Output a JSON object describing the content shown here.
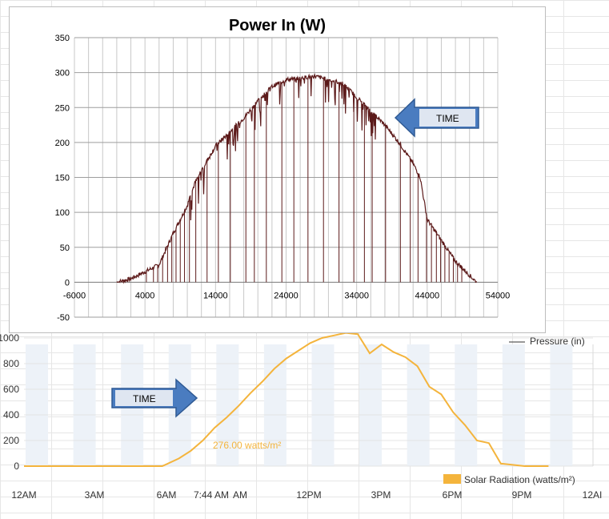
{
  "chart_data": [
    {
      "type": "line",
      "title": "Power In (W)",
      "xlim": [
        -6000,
        54000
      ],
      "ylim": [
        -50,
        350
      ],
      "x_ticks": [
        "-6000",
        "4000",
        "14000",
        "24000",
        "34000",
        "44000",
        "54000"
      ],
      "y_ticks": [
        "350",
        "300",
        "250",
        "200",
        "150",
        "100",
        "50",
        "0",
        "-50"
      ],
      "series": [
        {
          "color": "#5c1a1a",
          "x": [
            0,
            2000,
            4000,
            6000,
            8000,
            10000,
            11000,
            12000,
            14000,
            16000,
            18000,
            20000,
            22000,
            24000,
            26000,
            28000,
            30000,
            32000,
            34000,
            36000,
            38000,
            40000,
            42000,
            43000,
            44000,
            46000,
            48000,
            50000,
            51000
          ],
          "y": [
            0,
            5,
            15,
            25,
            70,
            110,
            140,
            160,
            195,
            215,
            235,
            260,
            280,
            290,
            292,
            295,
            290,
            285,
            265,
            245,
            225,
            200,
            170,
            150,
            90,
            60,
            30,
            10,
            0
          ]
        }
      ],
      "annotation": "TIME"
    },
    {
      "type": "line",
      "ylim": [
        0,
        1000
      ],
      "y_ticks": [
        "1000",
        "800",
        "600",
        "400",
        "200",
        "0"
      ],
      "x_ticks": [
        "12AM",
        "3AM",
        "6AM",
        "7:44 AM",
        "AM",
        "12PM",
        "3PM",
        "6PM",
        "9PM",
        "12AI"
      ],
      "series": [
        {
          "name": "Solar Radiation (watts/m²)",
          "color": "#f4b43c",
          "x": [
            0,
            5.8,
            6.5,
            7,
            7.5,
            8,
            8.5,
            9,
            9.5,
            10,
            10.5,
            11,
            11.5,
            12,
            12.5,
            13,
            13.5,
            14,
            14.5,
            15,
            15.5,
            16,
            16.5,
            17,
            17.5,
            18,
            18.5,
            19,
            19.5,
            20,
            20.5,
            21,
            21.5,
            22
          ],
          "y": [
            0,
            0,
            60,
            120,
            200,
            300,
            380,
            470,
            570,
            660,
            760,
            840,
            900,
            960,
            1000,
            1020,
            1040,
            1030,
            880,
            950,
            890,
            850,
            780,
            620,
            560,
            420,
            320,
            200,
            180,
            20,
            10,
            0,
            0,
            0
          ]
        }
      ],
      "annotation": "276.00 watts/m²",
      "arrow_label": "TIME",
      "legend_partial": "Pressure (in)"
    }
  ],
  "colors": {
    "accent_arrow": "#4a7cc0",
    "arrow_box": "#dfe6f1",
    "solar": "#f4b43c",
    "power": "#5c1a1a"
  }
}
